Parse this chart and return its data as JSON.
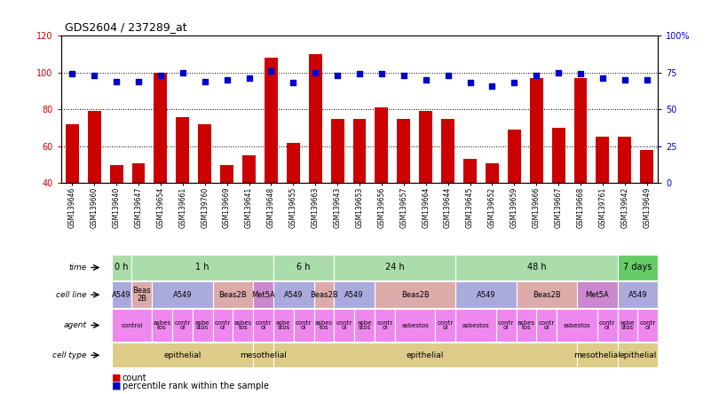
{
  "title": "GDS2604 / 237289_at",
  "samples": [
    "GSM139646",
    "GSM139660",
    "GSM139640",
    "GSM139647",
    "GSM139654",
    "GSM139661",
    "GSM139760",
    "GSM139669",
    "GSM139641",
    "GSM139648",
    "GSM139655",
    "GSM139663",
    "GSM139643",
    "GSM139653",
    "GSM139656",
    "GSM139657",
    "GSM139664",
    "GSM139644",
    "GSM139645",
    "GSM139652",
    "GSM139659",
    "GSM139666",
    "GSM139667",
    "GSM139668",
    "GSM139761",
    "GSM139642",
    "GSM139649"
  ],
  "counts": [
    72,
    79,
    50,
    51,
    100,
    76,
    72,
    50,
    55,
    108,
    62,
    110,
    75,
    75,
    81,
    75,
    79,
    75,
    53,
    51,
    69,
    97,
    70,
    97,
    65,
    65,
    58
  ],
  "percentiles": [
    74,
    73,
    69,
    69,
    73,
    75,
    69,
    70,
    71,
    76,
    68,
    75,
    73,
    74,
    74,
    73,
    70,
    73,
    68,
    66,
    68,
    73,
    75,
    74,
    71,
    70,
    70
  ],
  "ylim_left": [
    40,
    120
  ],
  "ylim_right": [
    0,
    100
  ],
  "yticks_left": [
    40,
    60,
    80,
    100,
    120
  ],
  "yticks_right": [
    0,
    25,
    50,
    75,
    100
  ],
  "ytick_right_labels": [
    "0",
    "25",
    "50",
    "75",
    "100%"
  ],
  "bar_color": "#cc0000",
  "dot_color": "#0000cc",
  "time_row": {
    "label": "time",
    "segments": [
      {
        "text": "0 h",
        "start": 0,
        "end": 1,
        "color": "#aaddaa"
      },
      {
        "text": "1 h",
        "start": 1,
        "end": 8,
        "color": "#aaddaa"
      },
      {
        "text": "6 h",
        "start": 8,
        "end": 11,
        "color": "#aaddaa"
      },
      {
        "text": "24 h",
        "start": 11,
        "end": 17,
        "color": "#aaddaa"
      },
      {
        "text": "48 h",
        "start": 17,
        "end": 25,
        "color": "#aaddaa"
      },
      {
        "text": "7 days",
        "start": 25,
        "end": 27,
        "color": "#66cc66"
      }
    ]
  },
  "cell_line_row": {
    "label": "cell line",
    "segments": [
      {
        "text": "A549",
        "start": 0,
        "end": 1,
        "color": "#aaaadd"
      },
      {
        "text": "Beas\n2B",
        "start": 1,
        "end": 2,
        "color": "#ddaaaa"
      },
      {
        "text": "A549",
        "start": 2,
        "end": 5,
        "color": "#aaaadd"
      },
      {
        "text": "Beas2B",
        "start": 5,
        "end": 7,
        "color": "#ddaaaa"
      },
      {
        "text": "Met5A",
        "start": 7,
        "end": 8,
        "color": "#cc88cc"
      },
      {
        "text": "A549",
        "start": 8,
        "end": 10,
        "color": "#aaaadd"
      },
      {
        "text": "Beas2B",
        "start": 10,
        "end": 11,
        "color": "#ddaaaa"
      },
      {
        "text": "A549",
        "start": 11,
        "end": 13,
        "color": "#aaaadd"
      },
      {
        "text": "Beas2B",
        "start": 13,
        "end": 17,
        "color": "#ddaaaa"
      },
      {
        "text": "A549",
        "start": 17,
        "end": 20,
        "color": "#aaaadd"
      },
      {
        "text": "Beas2B",
        "start": 20,
        "end": 23,
        "color": "#ddaaaa"
      },
      {
        "text": "Met5A",
        "start": 23,
        "end": 25,
        "color": "#cc88cc"
      },
      {
        "text": "A549",
        "start": 25,
        "end": 27,
        "color": "#aaaadd"
      }
    ]
  },
  "agent_row": {
    "label": "agent",
    "segments": [
      {
        "text": "control",
        "start": 0,
        "end": 2,
        "color": "#ee88ee"
      },
      {
        "text": "asbes\ntos",
        "start": 2,
        "end": 3,
        "color": "#ee88ee"
      },
      {
        "text": "contr\nol",
        "start": 3,
        "end": 4,
        "color": "#ee88ee"
      },
      {
        "text": "asbe\nstos",
        "start": 4,
        "end": 5,
        "color": "#ee88ee"
      },
      {
        "text": "contr\nol",
        "start": 5,
        "end": 6,
        "color": "#ee88ee"
      },
      {
        "text": "asbes\ntos",
        "start": 6,
        "end": 7,
        "color": "#ee88ee"
      },
      {
        "text": "contr\nol",
        "start": 7,
        "end": 8,
        "color": "#ee88ee"
      },
      {
        "text": "asbe\nstos",
        "start": 8,
        "end": 9,
        "color": "#ee88ee"
      },
      {
        "text": "contr\nol",
        "start": 9,
        "end": 10,
        "color": "#ee88ee"
      },
      {
        "text": "asbes\ntos",
        "start": 10,
        "end": 11,
        "color": "#ee88ee"
      },
      {
        "text": "contr\nol",
        "start": 11,
        "end": 12,
        "color": "#ee88ee"
      },
      {
        "text": "asbe\nstos",
        "start": 12,
        "end": 13,
        "color": "#ee88ee"
      },
      {
        "text": "contr\nol",
        "start": 13,
        "end": 14,
        "color": "#ee88ee"
      },
      {
        "text": "asbestos",
        "start": 14,
        "end": 16,
        "color": "#ee88ee"
      },
      {
        "text": "contr\nol",
        "start": 16,
        "end": 17,
        "color": "#ee88ee"
      },
      {
        "text": "asbestos",
        "start": 17,
        "end": 19,
        "color": "#ee88ee"
      },
      {
        "text": "contr\nol",
        "start": 19,
        "end": 20,
        "color": "#ee88ee"
      },
      {
        "text": "asbes\ntos",
        "start": 20,
        "end": 21,
        "color": "#ee88ee"
      },
      {
        "text": "contr\nol",
        "start": 21,
        "end": 22,
        "color": "#ee88ee"
      },
      {
        "text": "asbestos",
        "start": 22,
        "end": 24,
        "color": "#ee88ee"
      },
      {
        "text": "contr\nol",
        "start": 24,
        "end": 25,
        "color": "#ee88ee"
      },
      {
        "text": "asbe\nstos",
        "start": 25,
        "end": 26,
        "color": "#ee88ee"
      },
      {
        "text": "contr\nol",
        "start": 26,
        "end": 27,
        "color": "#ee88ee"
      }
    ]
  },
  "cell_type_row": {
    "label": "cell type",
    "segments": [
      {
        "text": "epithelial",
        "start": 0,
        "end": 7,
        "color": "#ddcc88"
      },
      {
        "text": "mesothelial",
        "start": 7,
        "end": 8,
        "color": "#ddcc88"
      },
      {
        "text": "epithelial",
        "start": 8,
        "end": 23,
        "color": "#ddcc88"
      },
      {
        "text": "mesothelial",
        "start": 23,
        "end": 25,
        "color": "#ddcc88"
      },
      {
        "text": "epithelial",
        "start": 25,
        "end": 27,
        "color": "#ddcc88"
      }
    ]
  }
}
